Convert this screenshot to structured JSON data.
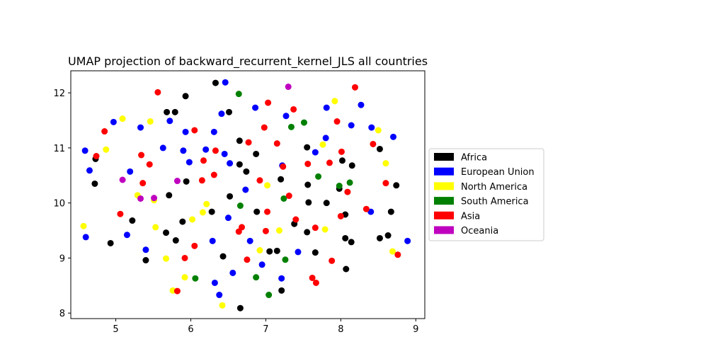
{
  "chart_data": {
    "type": "scatter",
    "title": "UMAP projection of backward_recurrent_kernel_JLS all countries",
    "xlabel": "",
    "ylabel": "",
    "xlim": [
      4.4,
      9.12
    ],
    "ylim": [
      7.9,
      12.4
    ],
    "xticks": [
      5,
      6,
      7,
      8,
      9
    ],
    "yticks": [
      8,
      9,
      10,
      11,
      12
    ],
    "grid": false,
    "legend_position": "right",
    "series": [
      {
        "name": "Africa",
        "color": "#000000",
        "points": [
          [
            4.73,
            10.8
          ],
          [
            4.72,
            10.35
          ],
          [
            4.93,
            9.27
          ],
          [
            5.22,
            9.68
          ],
          [
            5.4,
            8.96
          ],
          [
            5.67,
            9.46
          ],
          [
            5.68,
            11.65
          ],
          [
            5.71,
            10.14
          ],
          [
            5.79,
            11.65
          ],
          [
            5.8,
            9.32
          ],
          [
            5.89,
            9.66
          ],
          [
            5.93,
            11.94
          ],
          [
            5.94,
            10.39
          ],
          [
            6.28,
            9.84
          ],
          [
            6.33,
            12.18
          ],
          [
            6.43,
            9.03
          ],
          [
            6.51,
            11.65
          ],
          [
            6.52,
            10.12
          ],
          [
            6.65,
            11.13
          ],
          [
            6.65,
            10.7
          ],
          [
            6.66,
            8.09
          ],
          [
            6.74,
            10.57
          ],
          [
            6.87,
            10.89
          ],
          [
            6.88,
            9.84
          ],
          [
            7.05,
            9.12
          ],
          [
            7.15,
            9.13
          ],
          [
            7.2,
            10.43
          ],
          [
            7.21,
            8.41
          ],
          [
            7.38,
            9.62
          ],
          [
            7.55,
            11.01
          ],
          [
            7.55,
            9.47
          ],
          [
            7.56,
            10.33
          ],
          [
            7.57,
            10.01
          ],
          [
            7.66,
            9.1
          ],
          [
            7.81,
            10.0
          ],
          [
            7.98,
            10.26
          ],
          [
            8.02,
            10.77
          ],
          [
            8.06,
            9.79
          ],
          [
            8.06,
            9.36
          ],
          [
            8.07,
            8.8
          ],
          [
            8.14,
            9.29
          ],
          [
            8.15,
            10.68
          ],
          [
            8.52,
            10.98
          ],
          [
            8.52,
            9.36
          ],
          [
            8.63,
            9.41
          ],
          [
            8.67,
            9.84
          ],
          [
            8.74,
            10.32
          ]
        ]
      },
      {
        "name": "European Union",
        "color": "#0000ff",
        "points": [
          [
            4.59,
            10.95
          ],
          [
            4.6,
            9.38
          ],
          [
            4.65,
            10.59
          ],
          [
            4.97,
            11.47
          ],
          [
            5.15,
            9.42
          ],
          [
            5.19,
            10.57
          ],
          [
            5.33,
            11.37
          ],
          [
            5.4,
            9.15
          ],
          [
            5.63,
            11.0
          ],
          [
            5.72,
            11.49
          ],
          [
            5.9,
            10.95
          ],
          [
            5.93,
            11.29
          ],
          [
            5.98,
            10.74
          ],
          [
            6.2,
            10.97
          ],
          [
            6.29,
            9.31
          ],
          [
            6.31,
            11.29
          ],
          [
            6.32,
            8.55
          ],
          [
            6.38,
            8.33
          ],
          [
            6.41,
            11.62
          ],
          [
            6.45,
            10.89
          ],
          [
            6.46,
            12.19
          ],
          [
            6.5,
            9.73
          ],
          [
            6.52,
            10.72
          ],
          [
            6.56,
            8.73
          ],
          [
            6.73,
            10.24
          ],
          [
            6.79,
            9.31
          ],
          [
            6.86,
            11.73
          ],
          [
            6.95,
            8.88
          ],
          [
            7.21,
            8.63
          ],
          [
            7.22,
            10.68
          ],
          [
            7.27,
            11.58
          ],
          [
            7.43,
            9.11
          ],
          [
            7.66,
            10.92
          ],
          [
            7.8,
            11.18
          ],
          [
            7.81,
            11.73
          ],
          [
            8.14,
            11.41
          ],
          [
            8.27,
            11.78
          ],
          [
            8.4,
            9.84
          ],
          [
            8.41,
            11.37
          ],
          [
            8.7,
            11.2
          ],
          [
            8.89,
            9.31
          ]
        ]
      },
      {
        "name": "North America",
        "color": "#ffff00",
        "points": [
          [
            4.57,
            9.58
          ],
          [
            4.87,
            10.97
          ],
          [
            5.09,
            11.53
          ],
          [
            5.29,
            10.14
          ],
          [
            5.46,
            11.48
          ],
          [
            5.51,
            10.05
          ],
          [
            5.53,
            9.56
          ],
          [
            5.67,
            8.99
          ],
          [
            5.76,
            8.41
          ],
          [
            5.92,
            8.65
          ],
          [
            6.02,
            9.7
          ],
          [
            6.16,
            9.83
          ],
          [
            6.21,
            9.98
          ],
          [
            6.42,
            8.14
          ],
          [
            6.92,
            9.14
          ],
          [
            7.02,
            10.32
          ],
          [
            7.18,
            9.5
          ],
          [
            7.76,
            11.06
          ],
          [
            7.79,
            9.52
          ],
          [
            7.92,
            11.85
          ],
          [
            8.5,
            11.32
          ],
          [
            8.6,
            10.72
          ],
          [
            8.69,
            9.12
          ]
        ]
      },
      {
        "name": "South America",
        "color": "#008000",
        "points": [
          [
            6.06,
            8.63
          ],
          [
            6.64,
            11.98
          ],
          [
            6.66,
            9.95
          ],
          [
            6.87,
            8.65
          ],
          [
            7.04,
            8.33
          ],
          [
            7.24,
            10.08
          ],
          [
            7.26,
            8.97
          ],
          [
            7.34,
            11.38
          ],
          [
            7.51,
            11.46
          ],
          [
            7.7,
            10.48
          ],
          [
            7.98,
            10.31
          ],
          [
            8.12,
            10.37
          ]
        ]
      },
      {
        "name": "Asia",
        "color": "#ff0000",
        "points": [
          [
            4.74,
            10.85
          ],
          [
            4.85,
            11.3
          ],
          [
            5.06,
            9.8
          ],
          [
            5.34,
            10.87
          ],
          [
            5.36,
            10.36
          ],
          [
            5.45,
            10.7
          ],
          [
            5.56,
            12.01
          ],
          [
            5.82,
            8.4
          ],
          [
            5.92,
            9.0
          ],
          [
            6.05,
            11.32
          ],
          [
            6.05,
            9.22
          ],
          [
            6.15,
            10.41
          ],
          [
            6.17,
            10.77
          ],
          [
            6.31,
            10.51
          ],
          [
            6.33,
            10.95
          ],
          [
            6.64,
            9.48
          ],
          [
            6.68,
            9.56
          ],
          [
            6.75,
            8.97
          ],
          [
            6.77,
            11.1
          ],
          [
            6.92,
            10.41
          ],
          [
            6.98,
            11.37
          ],
          [
            7.0,
            9.49
          ],
          [
            7.02,
            9.84
          ],
          [
            7.03,
            11.82
          ],
          [
            7.15,
            11.08
          ],
          [
            7.23,
            10.66
          ],
          [
            7.31,
            10.13
          ],
          [
            7.37,
            11.7
          ],
          [
            7.4,
            9.7
          ],
          [
            7.56,
            10.71
          ],
          [
            7.62,
            8.64
          ],
          [
            7.66,
            9.55
          ],
          [
            7.67,
            8.55
          ],
          [
            7.85,
            10.73
          ],
          [
            7.88,
            8.95
          ],
          [
            7.95,
            11.48
          ],
          [
            8.0,
            9.76
          ],
          [
            8.01,
            10.93
          ],
          [
            8.09,
            10.2
          ],
          [
            8.19,
            12.1
          ],
          [
            8.34,
            9.89
          ],
          [
            8.43,
            11.07
          ],
          [
            8.6,
            10.36
          ],
          [
            8.76,
            9.06
          ]
        ]
      },
      {
        "name": "Oceania",
        "color": "#bf00bf",
        "points": [
          [
            5.09,
            10.42
          ],
          [
            5.33,
            10.08
          ],
          [
            5.51,
            10.09
          ],
          [
            5.82,
            10.4
          ],
          [
            7.3,
            12.11
          ]
        ]
      }
    ]
  }
}
